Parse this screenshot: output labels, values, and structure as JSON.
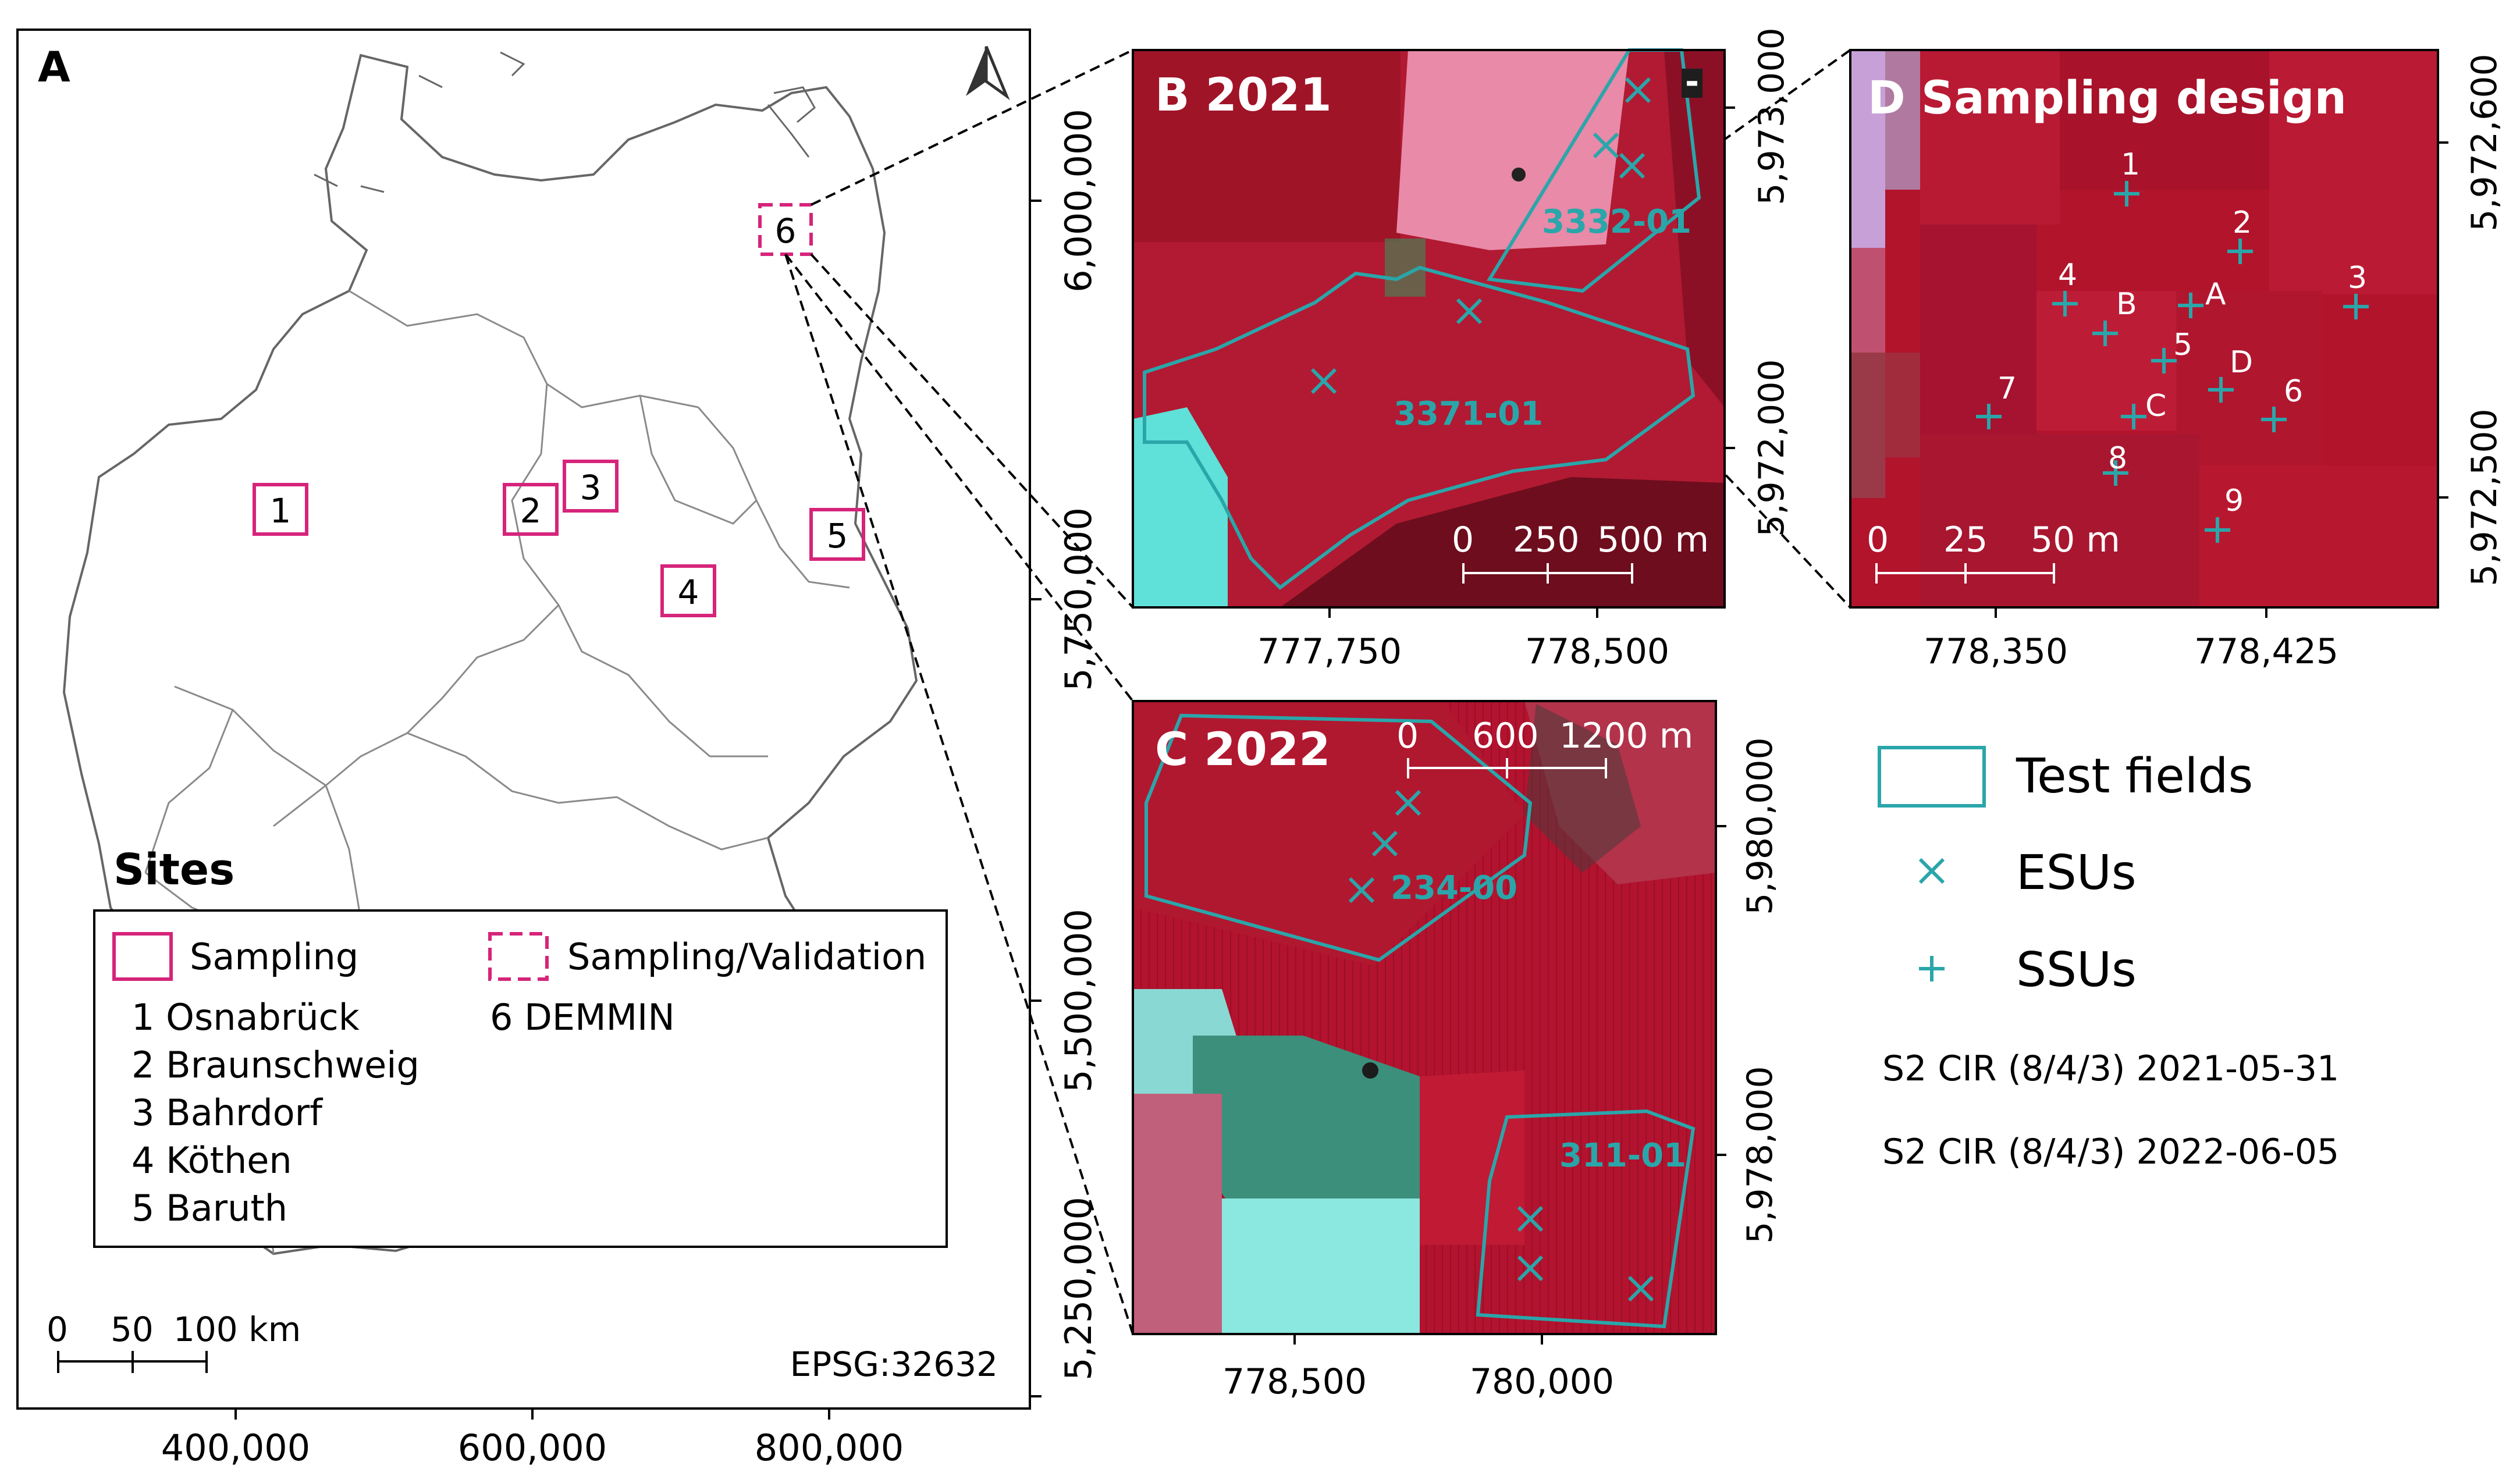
{
  "colors": {
    "site_magenta": "#d6247a",
    "field_teal": "#2aa6aa",
    "ir_red": "#b01830",
    "ir_dark": "#7a0c1c",
    "cyan_water": "#5fe0d8",
    "frame": "#000000"
  },
  "panelA": {
    "label": "A",
    "north_icon": "north-arrow-icon",
    "x_ticks": [
      "400,000",
      "600,000",
      "800,000"
    ],
    "y_ticks": [
      "6,000,000",
      "5,750,000",
      "5,500,000",
      "5,250,000"
    ],
    "sites": [
      {
        "id": "1"
      },
      {
        "id": "2"
      },
      {
        "id": "3"
      },
      {
        "id": "4"
      },
      {
        "id": "5"
      },
      {
        "id": "6"
      }
    ],
    "legend": {
      "title": "Sites",
      "sampling_label": "Sampling",
      "validation_label": "Sampling/Validation",
      "list": [
        "1 Osnabrück",
        "2 Braunschweig",
        "3 Bahrdorf",
        "4 Köthen",
        "5 Baruth"
      ],
      "demmin": "6 DEMMIN"
    },
    "scalebar": {
      "ticks": [
        "0",
        "50",
        "100 km"
      ]
    },
    "crs": "EPSG:32632"
  },
  "panelB": {
    "title": "B 2021",
    "x_ticks": [
      "777,750",
      "778,500"
    ],
    "y_ticks": [
      "5,973,000",
      "5,972,000"
    ],
    "fields": [
      "3332-01",
      "3371-01"
    ],
    "scalebar": [
      "0",
      "250",
      "500 m"
    ],
    "minus_sign": "-"
  },
  "panelC": {
    "title": "C 2022",
    "x_ticks": [
      "778,500",
      "780,000"
    ],
    "y_ticks": [
      "5,980,000",
      "5,978,000"
    ],
    "fields": [
      "234-00",
      "311-01"
    ],
    "scalebar": [
      "0",
      "600",
      "1200 m"
    ]
  },
  "panelD": {
    "title": "D Sampling design",
    "x_ticks": [
      "778,350",
      "778,425"
    ],
    "y_ticks": [
      "5,972,600",
      "5,972,500"
    ],
    "ssu_labels": [
      "1",
      "2",
      "3",
      "4",
      "5",
      "6",
      "7",
      "8",
      "9"
    ],
    "esu_labels": [
      "A",
      "B",
      "C",
      "D"
    ],
    "scalebar": [
      "0",
      "25",
      "50 m"
    ]
  },
  "legend": {
    "test_fields": "Test fields",
    "esus": "ESUs",
    "ssus": "SSUs",
    "source_2021": "S2 CIR (8/4/3) 2021-05-31",
    "source_2022": "S2 CIR (8/4/3) 2022-06-05"
  }
}
